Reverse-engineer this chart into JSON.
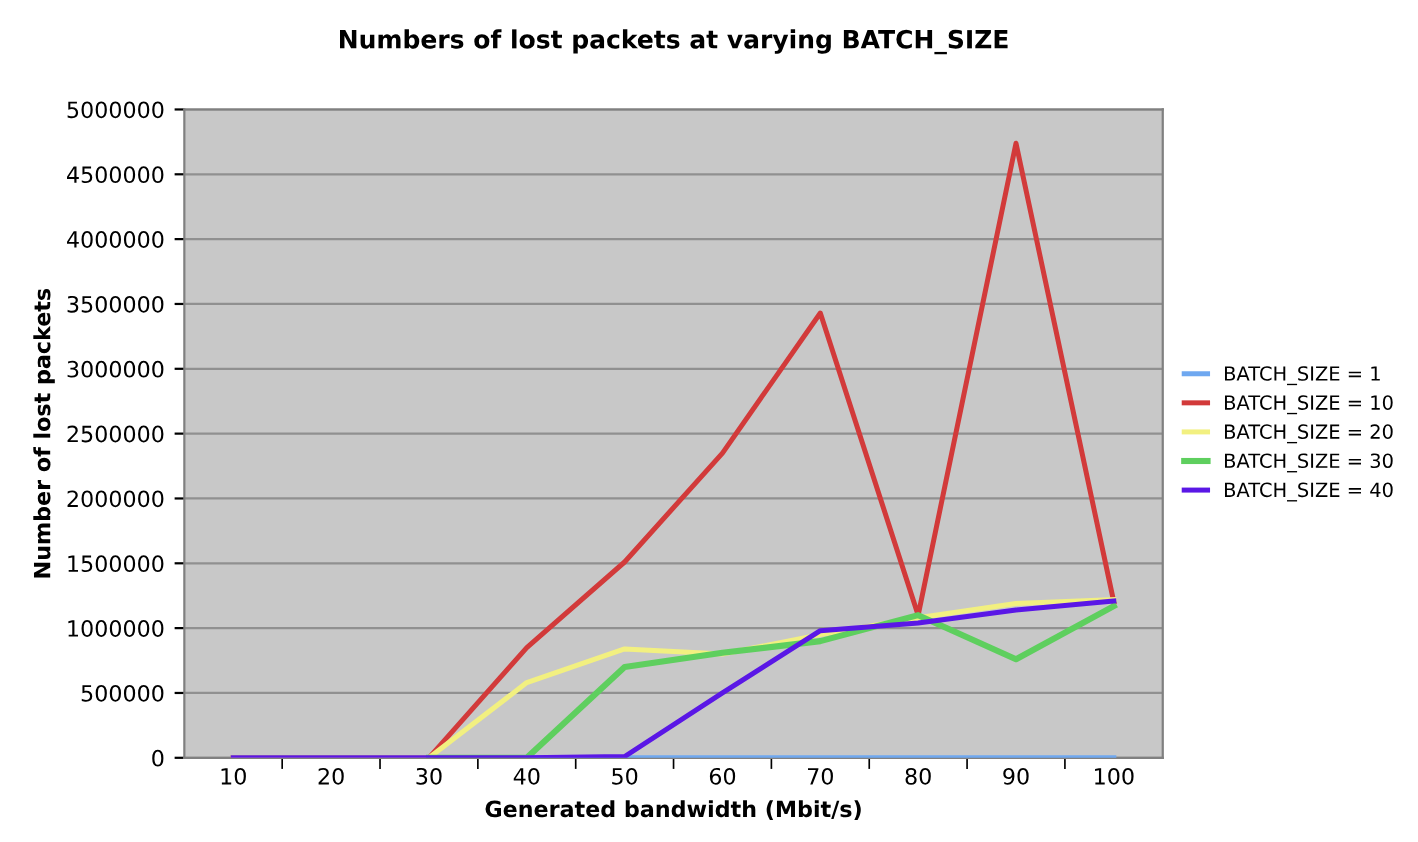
{
  "chart_data": {
    "type": "line",
    "title": "Numbers of lost packets at varying BATCH_SIZE",
    "xlabel": "Generated bandwidth (Mbit/s)",
    "ylabel": "Number of lost packets",
    "categories": [
      "10",
      "20",
      "30",
      "40",
      "50",
      "60",
      "70",
      "80",
      "90",
      "100"
    ],
    "series": [
      {
        "name": "BATCH_SIZE = 1",
        "color": "#6fa8f0",
        "values": [
          null,
          null,
          null,
          0,
          0,
          0,
          0,
          0,
          0,
          0
        ]
      },
      {
        "name": "BATCH_SIZE = 10",
        "color": "#d23a3a",
        "values": [
          0,
          0,
          0,
          850000,
          1510000,
          2350000,
          3430000,
          1100000,
          4740000,
          1200000
        ]
      },
      {
        "name": "BATCH_SIZE = 20",
        "color": "#f2f080",
        "values": [
          0,
          0,
          0,
          580000,
          840000,
          800000,
          950000,
          1080000,
          1190000,
          1220000
        ]
      },
      {
        "name": "BATCH_SIZE = 30",
        "color": "#5ecf5e",
        "values": [
          null,
          null,
          0,
          0,
          700000,
          810000,
          900000,
          1100000,
          760000,
          1170000
        ]
      },
      {
        "name": "BATCH_SIZE = 40",
        "color": "#5a17e6",
        "values": [
          0,
          0,
          0,
          0,
          10000,
          500000,
          980000,
          1040000,
          1140000,
          1210000
        ]
      }
    ],
    "ylim": [
      0,
      5000000
    ],
    "yticks": [
      0,
      500000,
      1000000,
      1500000,
      2000000,
      2500000,
      3000000,
      3500000,
      4000000,
      4500000,
      5000000
    ],
    "grid": "y",
    "legend": "right",
    "marker": "none",
    "line_style": "solid"
  }
}
